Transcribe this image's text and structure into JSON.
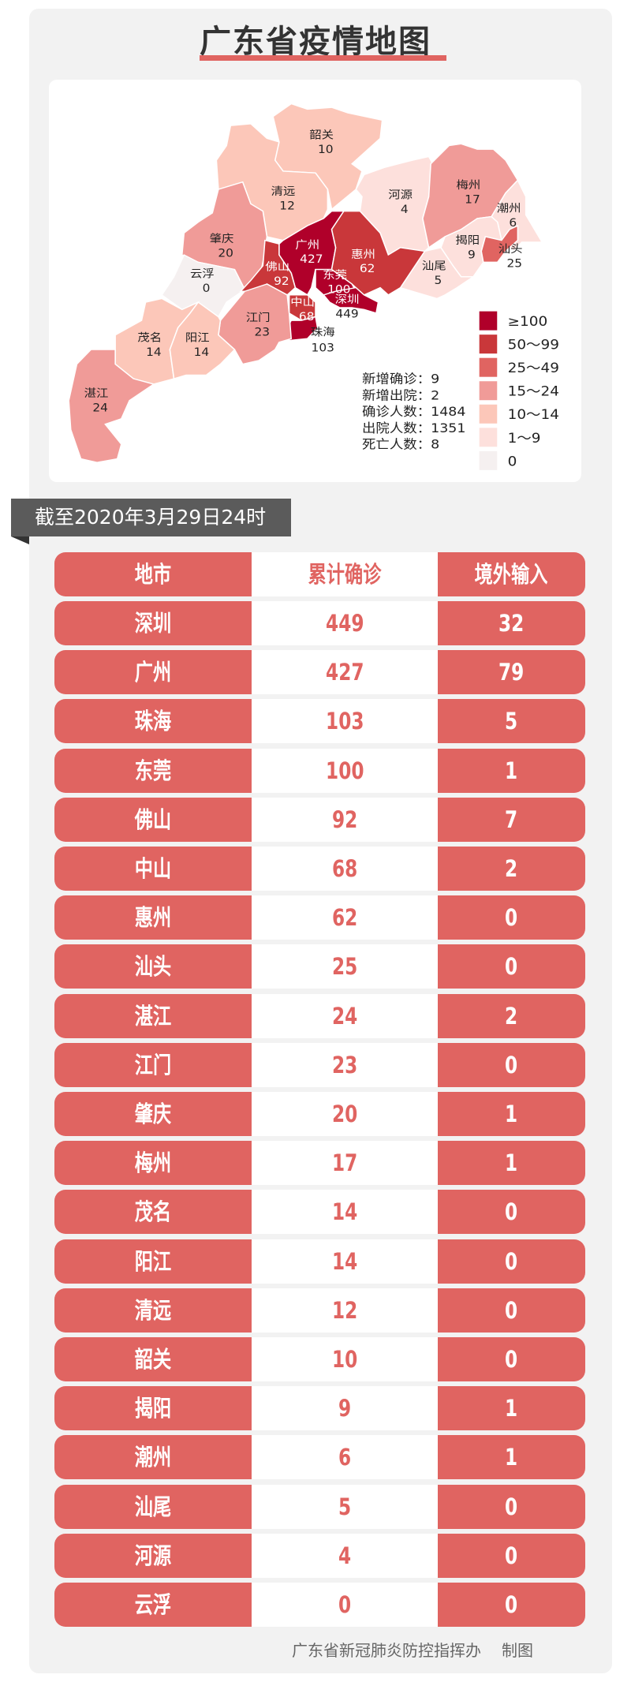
{
  "title": "广东省疫情地图",
  "colors": {
    "accent": "#e06461",
    "ge100": "#b0002a",
    "c50_99": "#c9373a",
    "c25_49": "#e06461",
    "c15_24": "#f09b98",
    "c10_14": "#fcc7b9",
    "c1_9": "#fde0dc",
    "c0": "#f5f0f0"
  },
  "map": {
    "regions": [
      {
        "name": "韶关",
        "value": "10"
      },
      {
        "name": "清远",
        "value": "12"
      },
      {
        "name": "河源",
        "value": "4"
      },
      {
        "name": "梅州",
        "value": "17"
      },
      {
        "name": "潮州",
        "value": "6"
      },
      {
        "name": "揭阳",
        "value": "9"
      },
      {
        "name": "汕头",
        "value": "25"
      },
      {
        "name": "汕尾",
        "value": "5"
      },
      {
        "name": "肇庆",
        "value": "20"
      },
      {
        "name": "云浮",
        "value": "0"
      },
      {
        "name": "广州",
        "value": "427"
      },
      {
        "name": "惠州",
        "value": "62"
      },
      {
        "name": "佛山",
        "value": "92"
      },
      {
        "name": "东莞",
        "value": "100"
      },
      {
        "name": "深圳",
        "value": "449"
      },
      {
        "name": "中山",
        "value": "68"
      },
      {
        "name": "珠海",
        "value": "103"
      },
      {
        "name": "江门",
        "value": "23"
      },
      {
        "name": "茂名",
        "value": "14"
      },
      {
        "name": "阳江",
        "value": "14"
      },
      {
        "name": "湛江",
        "value": "24"
      }
    ],
    "stats": [
      {
        "label": "新增确诊",
        "value": "9"
      },
      {
        "label": "新增出院",
        "value": "2"
      },
      {
        "label": "确诊人数",
        "value": "1484"
      },
      {
        "label": "出院人数",
        "value": "1351"
      },
      {
        "label": "死亡人数",
        "value": "8"
      }
    ],
    "legend": [
      {
        "label": "≥100",
        "color": "#b0002a"
      },
      {
        "label": "50～99",
        "color": "#c9373a"
      },
      {
        "label": "25～49",
        "color": "#e06461"
      },
      {
        "label": "15～24",
        "color": "#f09b98"
      },
      {
        "label": "10～14",
        "color": "#fcc7b9"
      },
      {
        "label": "1～9",
        "color": "#fde0dc"
      },
      {
        "label": "0",
        "color": "#f5f0f0"
      }
    ]
  },
  "date_banner": "截至2020年3月29日24时",
  "table": {
    "headers": [
      "地市",
      "累计确诊",
      "境外输入"
    ],
    "rows": [
      [
        "深圳",
        "449",
        "32"
      ],
      [
        "广州",
        "427",
        "79"
      ],
      [
        "珠海",
        "103",
        "5"
      ],
      [
        "东莞",
        "100",
        "1"
      ],
      [
        "佛山",
        "92",
        "7"
      ],
      [
        "中山",
        "68",
        "2"
      ],
      [
        "惠州",
        "62",
        "0"
      ],
      [
        "汕头",
        "25",
        "0"
      ],
      [
        "湛江",
        "24",
        "2"
      ],
      [
        "江门",
        "23",
        "0"
      ],
      [
        "肇庆",
        "20",
        "1"
      ],
      [
        "梅州",
        "17",
        "1"
      ],
      [
        "茂名",
        "14",
        "0"
      ],
      [
        "阳江",
        "14",
        "0"
      ],
      [
        "清远",
        "12",
        "0"
      ],
      [
        "韶关",
        "10",
        "0"
      ],
      [
        "揭阳",
        "9",
        "1"
      ],
      [
        "潮州",
        "6",
        "1"
      ],
      [
        "汕尾",
        "5",
        "0"
      ],
      [
        "河源",
        "4",
        "0"
      ],
      [
        "云浮",
        "0",
        "0"
      ]
    ]
  },
  "footer": {
    "org": "广东省新冠肺炎防控指挥办",
    "suffix": "制图"
  }
}
